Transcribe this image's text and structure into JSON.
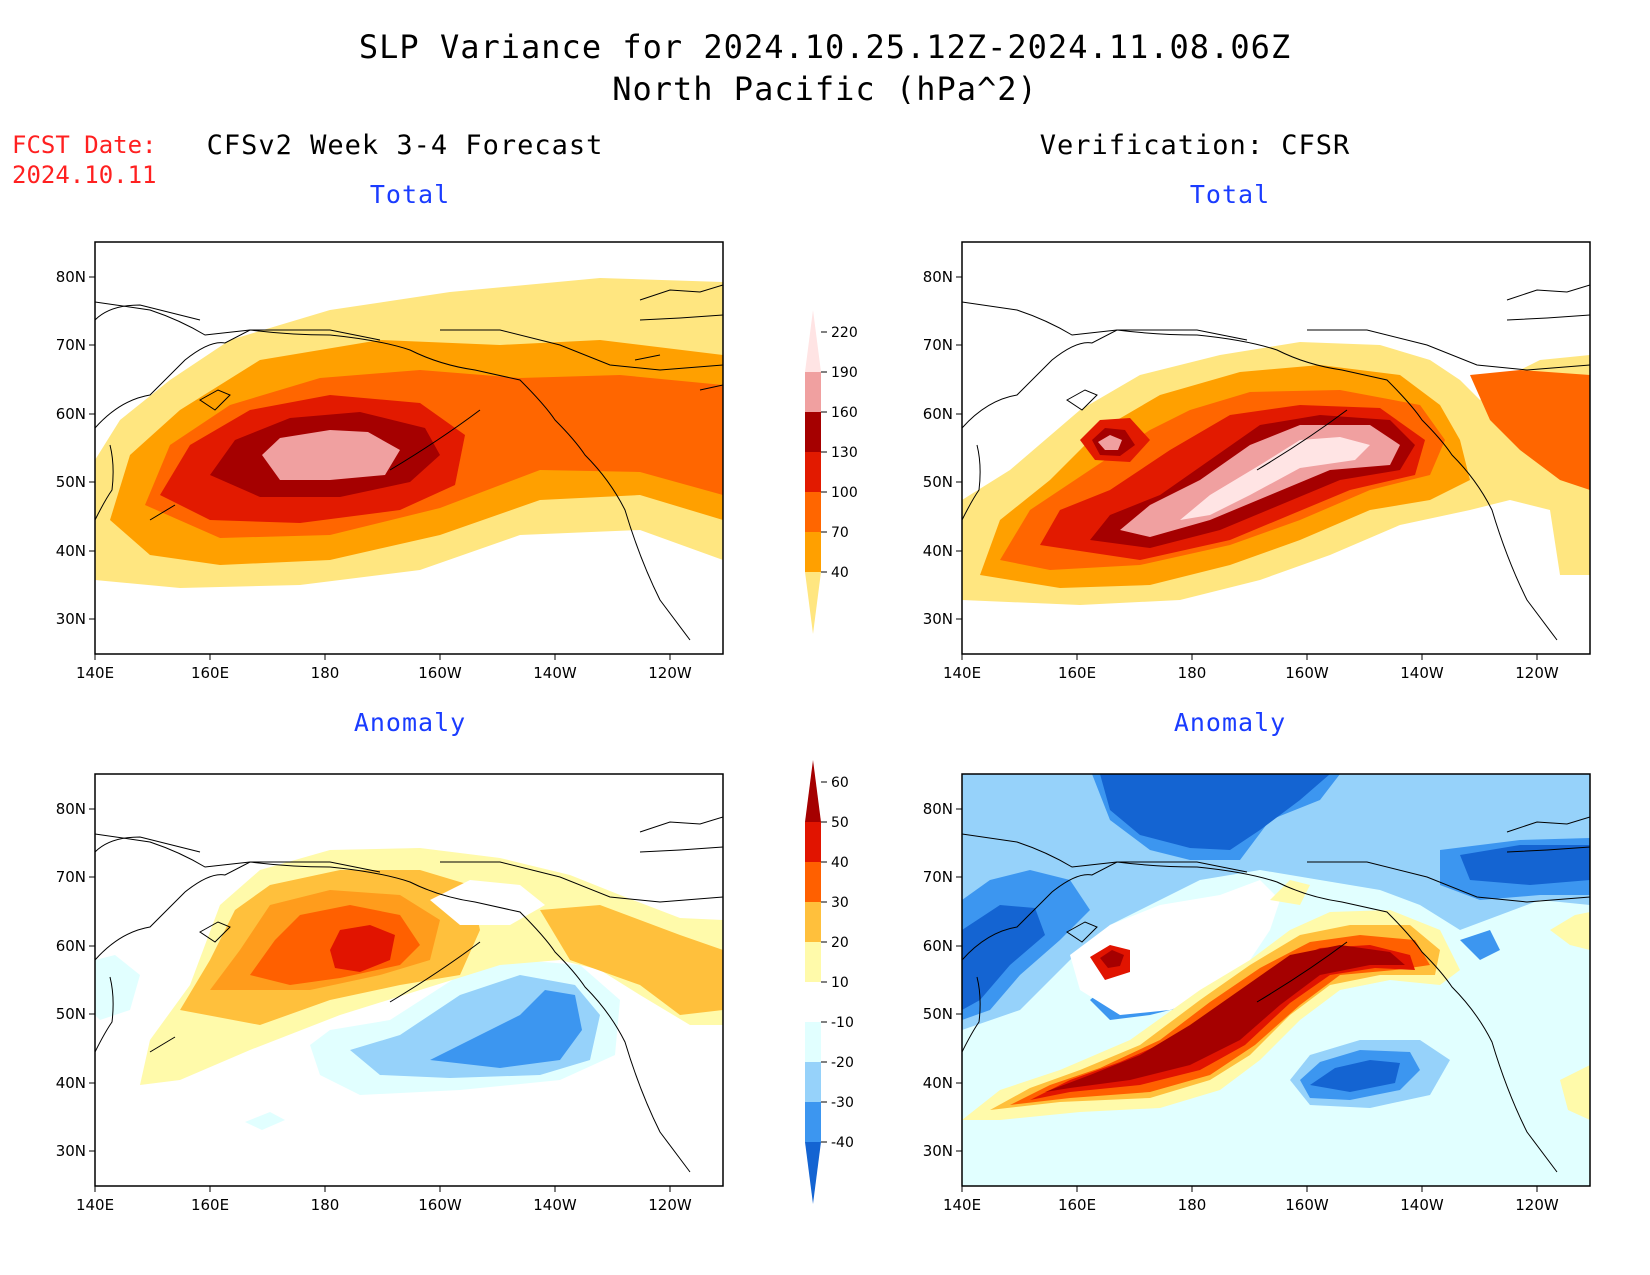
{
  "title": {
    "line1": "SLP Variance for 2024.10.25.12Z-2024.11.08.06Z",
    "line2": "North Pacific (hPa^2)"
  },
  "fcst": {
    "line1": "FCST Date:",
    "line2": "2024.10.11"
  },
  "columns": {
    "left": "CFSv2 Week 3-4 Forecast",
    "right": "Verification: CFSR"
  },
  "panels": [
    {
      "id": "fcst_total",
      "subtitle": "Total"
    },
    {
      "id": "ver_total",
      "subtitle": "Total"
    },
    {
      "id": "fcst_anom",
      "subtitle": "Anomaly"
    },
    {
      "id": "ver_anom",
      "subtitle": "Anomaly"
    }
  ],
  "axes": {
    "lon_ticks": [
      "140E",
      "160E",
      "180",
      "160W",
      "140W",
      "120W"
    ],
    "lat_ticks": [
      "30N",
      "40N",
      "50N",
      "60N",
      "70N",
      "80N"
    ]
  },
  "colorbar_total": {
    "levels": [
      "40",
      "70",
      "100",
      "130",
      "160",
      "190",
      "220"
    ],
    "colors": [
      "#ffe680",
      "#ffa000",
      "#ff6600",
      "#e21a00",
      "#a50000",
      "#f0a0a0",
      "#ffe4e4"
    ]
  },
  "colorbar_anomaly": {
    "levels": [
      "-40",
      "-30",
      "-20",
      "-10",
      "10",
      "20",
      "30",
      "40",
      "50",
      "60"
    ],
    "colors": [
      "#1464d2",
      "#3c96f0",
      "#96d2fa",
      "#e1ffff",
      "#ffffff",
      "#fffaaa",
      "#ffc03c",
      "#ff6000",
      "#e11400",
      "#a50000"
    ]
  }
}
